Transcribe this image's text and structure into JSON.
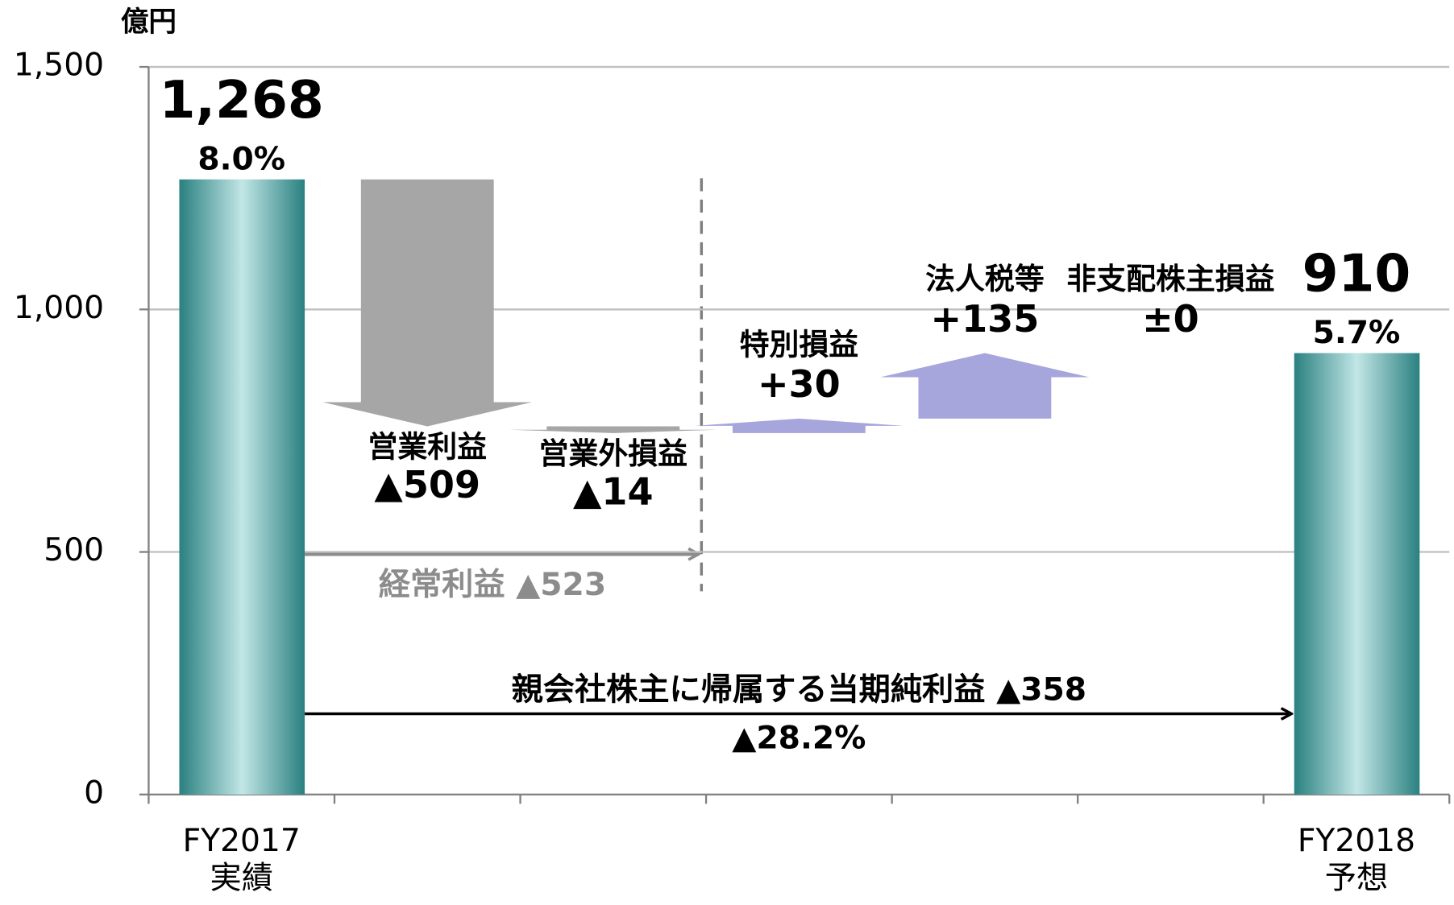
{
  "chart_data": {
    "type": "waterfall",
    "unit_label": "億円",
    "categories": [
      [
        "FY2017",
        "実績"
      ],
      null,
      null,
      null,
      null,
      null,
      [
        "FY2018",
        "予想"
      ]
    ],
    "step_names": [
      null,
      "営業利益",
      "営業外損益",
      "特別損益",
      "法人税等",
      "非支配株主損益",
      null
    ],
    "values": [
      1268,
      -509,
      -14,
      30,
      135,
      0,
      910
    ],
    "value_labels": [
      "1,268",
      "▲509",
      "▲14",
      "+30",
      "+135",
      "±0",
      "910"
    ],
    "percent_labels": [
      "8.0%",
      null,
      null,
      null,
      null,
      null,
      "5.7%"
    ],
    "is_total": [
      true,
      false,
      false,
      false,
      false,
      false,
      true
    ],
    "ylim": [
      0,
      1500
    ],
    "yticks": [
      0,
      500,
      {
        "value": 1000,
        "label": "1,000"
      },
      {
        "value": 1500,
        "label": "1,500"
      }
    ],
    "grid": true,
    "total_colors": [
      "#2a8080",
      "#c2e6e6"
    ],
    "decrease_color": "#a6a6a6",
    "increase_color": "#a6a6dc",
    "annotations": [
      {
        "text": "経常利益 ▲523",
        "color": "#8c8c8c"
      },
      {
        "text": "親会社株主に帰属する当期純利益 ▲358",
        "color": "#000000"
      },
      {
        "text": "▲28.2%",
        "color": "#000000"
      }
    ]
  }
}
